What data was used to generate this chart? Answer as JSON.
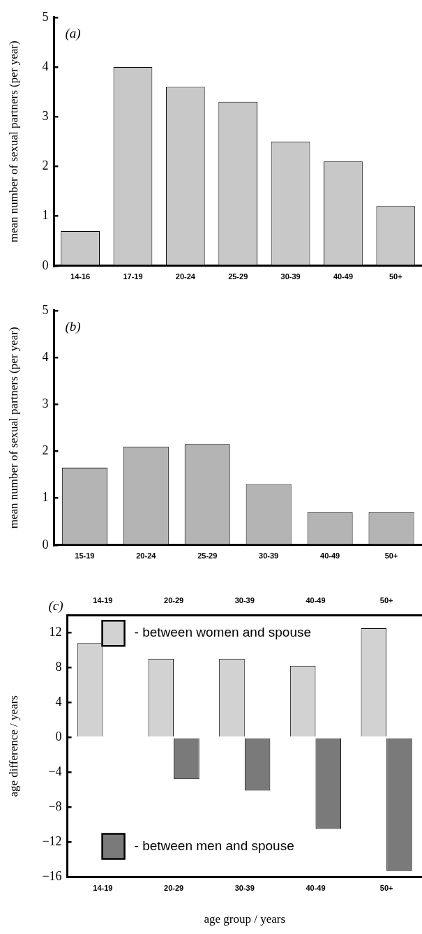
{
  "chart_data": [
    {
      "type": "bar",
      "title": "(a)",
      "ylabel": "mean number of sexual partners (per year)",
      "categories": [
        "14-16",
        "17-19",
        "20-24",
        "25-29",
        "30-39",
        "40-49",
        "50+"
      ],
      "values": [
        0.7,
        4.0,
        3.6,
        3.3,
        2.5,
        2.1,
        1.2
      ],
      "color": "#c8c8c8",
      "ylim": [
        0,
        5
      ],
      "yticks": [
        0,
        1,
        2,
        3,
        4,
        5
      ]
    },
    {
      "type": "bar",
      "title": "(b)",
      "ylabel": "mean number of sexual partners (per year)",
      "categories": [
        "15-19",
        "20-24",
        "25-29",
        "30-39",
        "40-49",
        "50+"
      ],
      "values": [
        1.65,
        2.1,
        2.15,
        1.3,
        0.7,
        0.7
      ],
      "color": "#b4b4b4",
      "ylim": [
        0,
        5
      ],
      "yticks": [
        0,
        1,
        2,
        3,
        4,
        5
      ]
    },
    {
      "type": "bar",
      "title": "(c)",
      "xlabel": "age group / years",
      "ylabel": "age difference / years",
      "categories": [
        "14-19",
        "20-29",
        "30-39",
        "40-49",
        "50+"
      ],
      "series": [
        {
          "name": "- between women and spouse",
          "color": "#d2d2d2",
          "values": [
            10.8,
            9,
            9,
            8.2,
            12.5
          ]
        },
        {
          "name": "- between men and spouse",
          "color": "#7a7a7a",
          "values": [
            null,
            -4.8,
            -6.1,
            -10.5,
            -15.3
          ]
        }
      ],
      "ylim": [
        -16,
        14
      ],
      "yticks": [
        {
          "value": -16,
          "label": "−16"
        },
        {
          "value": -12,
          "label": "−12"
        },
        {
          "value": -8,
          "label": "−8"
        },
        {
          "value": -4,
          "label": "−4"
        },
        0,
        4,
        8,
        12
      ],
      "legend": "left"
    }
  ]
}
